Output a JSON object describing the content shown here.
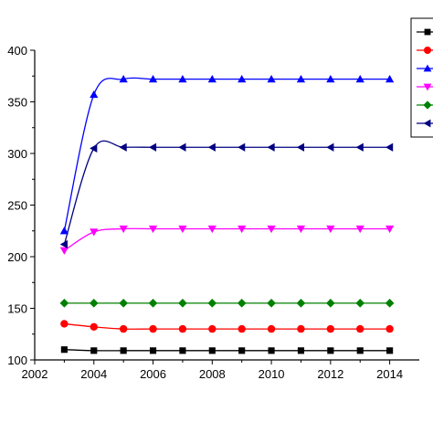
{
  "chart_data": {
    "type": "line",
    "title": "",
    "xlabel": "",
    "ylabel": "",
    "xlim": [
      2002,
      2015
    ],
    "ylim": [
      100,
      400
    ],
    "x_ticks": [
      2002,
      2004,
      2006,
      2008,
      2010,
      2012,
      2014
    ],
    "y_ticks": [
      100,
      150,
      200,
      250,
      300,
      350,
      400
    ],
    "x_tick_labels": [
      "2002",
      "2004",
      "2006",
      "2008",
      "2010",
      "2012",
      "2014"
    ],
    "y_tick_labels": [
      "100",
      "150",
      "200",
      "250",
      "300",
      "350",
      "400"
    ],
    "grid": false,
    "legend_placement": "top-right (cropped)",
    "x": [
      2003,
      2004,
      2005,
      2006,
      2007,
      2008,
      2009,
      2010,
      2011,
      2012,
      2013,
      2014
    ],
    "series": [
      {
        "color": "#000000",
        "marker": "square",
        "values": [
          110,
          109,
          109,
          109,
          109,
          109,
          109,
          109,
          109,
          109,
          109,
          109
        ]
      },
      {
        "color": "#ff0000",
        "marker": "circle",
        "values": [
          135,
          132,
          130,
          130,
          130,
          130,
          130,
          130,
          130,
          130,
          130,
          130
        ]
      },
      {
        "color": "#0000ff",
        "marker": "triangle-up",
        "values": [
          225,
          357,
          372,
          372,
          372,
          372,
          372,
          372,
          372,
          372,
          372,
          372
        ]
      },
      {
        "color": "#ff00ff",
        "marker": "triangle-down",
        "values": [
          206,
          224,
          227,
          227,
          227,
          227,
          227,
          227,
          227,
          227,
          227,
          227
        ]
      },
      {
        "color": "#008000",
        "marker": "diamond",
        "values": [
          155,
          155,
          155,
          155,
          155,
          155,
          155,
          155,
          155,
          155,
          155,
          155
        ]
      },
      {
        "color": "#000080",
        "marker": "triangle-left",
        "values": [
          212,
          305,
          306,
          306,
          306,
          306,
          306,
          306,
          306,
          306,
          306,
          306
        ]
      }
    ]
  }
}
